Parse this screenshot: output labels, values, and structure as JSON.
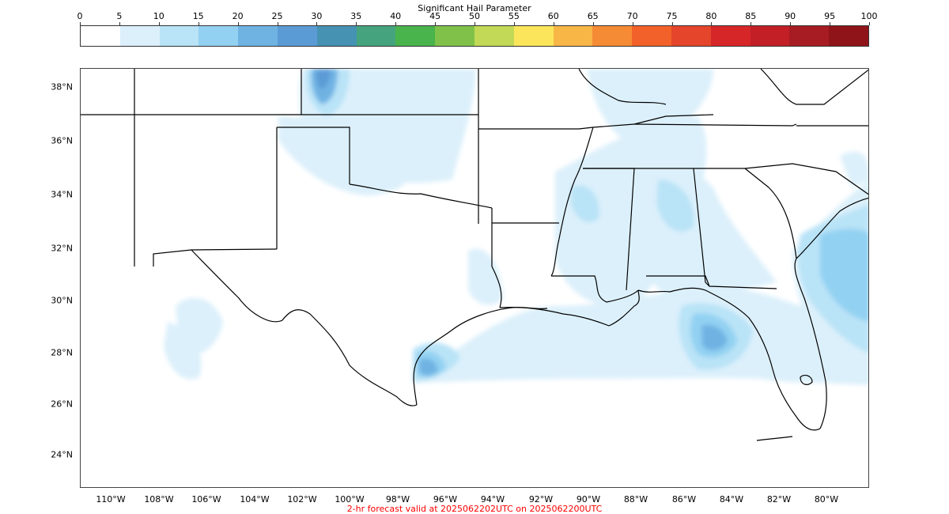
{
  "colorbar": {
    "title": "Significant Hail Parameter",
    "ticks": [
      "0",
      "5",
      "10",
      "15",
      "20",
      "25",
      "30",
      "35",
      "40",
      "45",
      "50",
      "55",
      "60",
      "65",
      "70",
      "75",
      "80",
      "85",
      "90",
      "95",
      "100"
    ],
    "colors": [
      "#ffffff",
      "#dcf0fb",
      "#b9e3f7",
      "#93d1f2",
      "#6fb3e3",
      "#5b9bd5",
      "#4592b3",
      "#45a47d",
      "#49b34c",
      "#80c249",
      "#c2d957",
      "#fbe65b",
      "#f8b647",
      "#f68b35",
      "#f26129",
      "#e4452b",
      "#d72628",
      "#c21f27",
      "#a71c22",
      "#8f141a"
    ]
  },
  "map": {
    "lat_labels": [
      "38°N",
      "36°N",
      "34°N",
      "32°N",
      "30°N",
      "28°N",
      "26°N",
      "24°N"
    ],
    "lon_labels": [
      "110°W",
      "108°W",
      "106°W",
      "104°W",
      "102°W",
      "100°W",
      "98°W",
      "96°W",
      "94°W",
      "92°W",
      "90°W",
      "88°W",
      "86°W",
      "84°W",
      "82°W",
      "80°W"
    ],
    "boundary_color": "#000000"
  },
  "caption": {
    "text": "2-hr forecast valid at 2025062202UTC on 2025062200UTC",
    "color": "#ff0000"
  }
}
